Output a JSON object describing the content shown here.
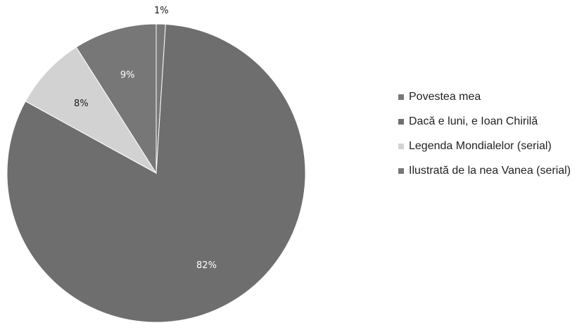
{
  "chart_data": {
    "type": "pie",
    "slices": [
      {
        "label": "Povestea mea",
        "value": 1,
        "display": "1%",
        "color": "#787878"
      },
      {
        "label": "Dacă e luni, e Ioan Chirilă",
        "value": 82,
        "display": "82%",
        "color": "#6e6e6e"
      },
      {
        "label": "Legenda Mondialelor (serial)",
        "value": 8,
        "display": "8%",
        "color": "#d2d2d2"
      },
      {
        "label": "Ilustrată de la nea Vanea (serial)",
        "value": 9,
        "display": "9%",
        "color": "#777777"
      }
    ],
    "legend_position": "right",
    "title": ""
  }
}
